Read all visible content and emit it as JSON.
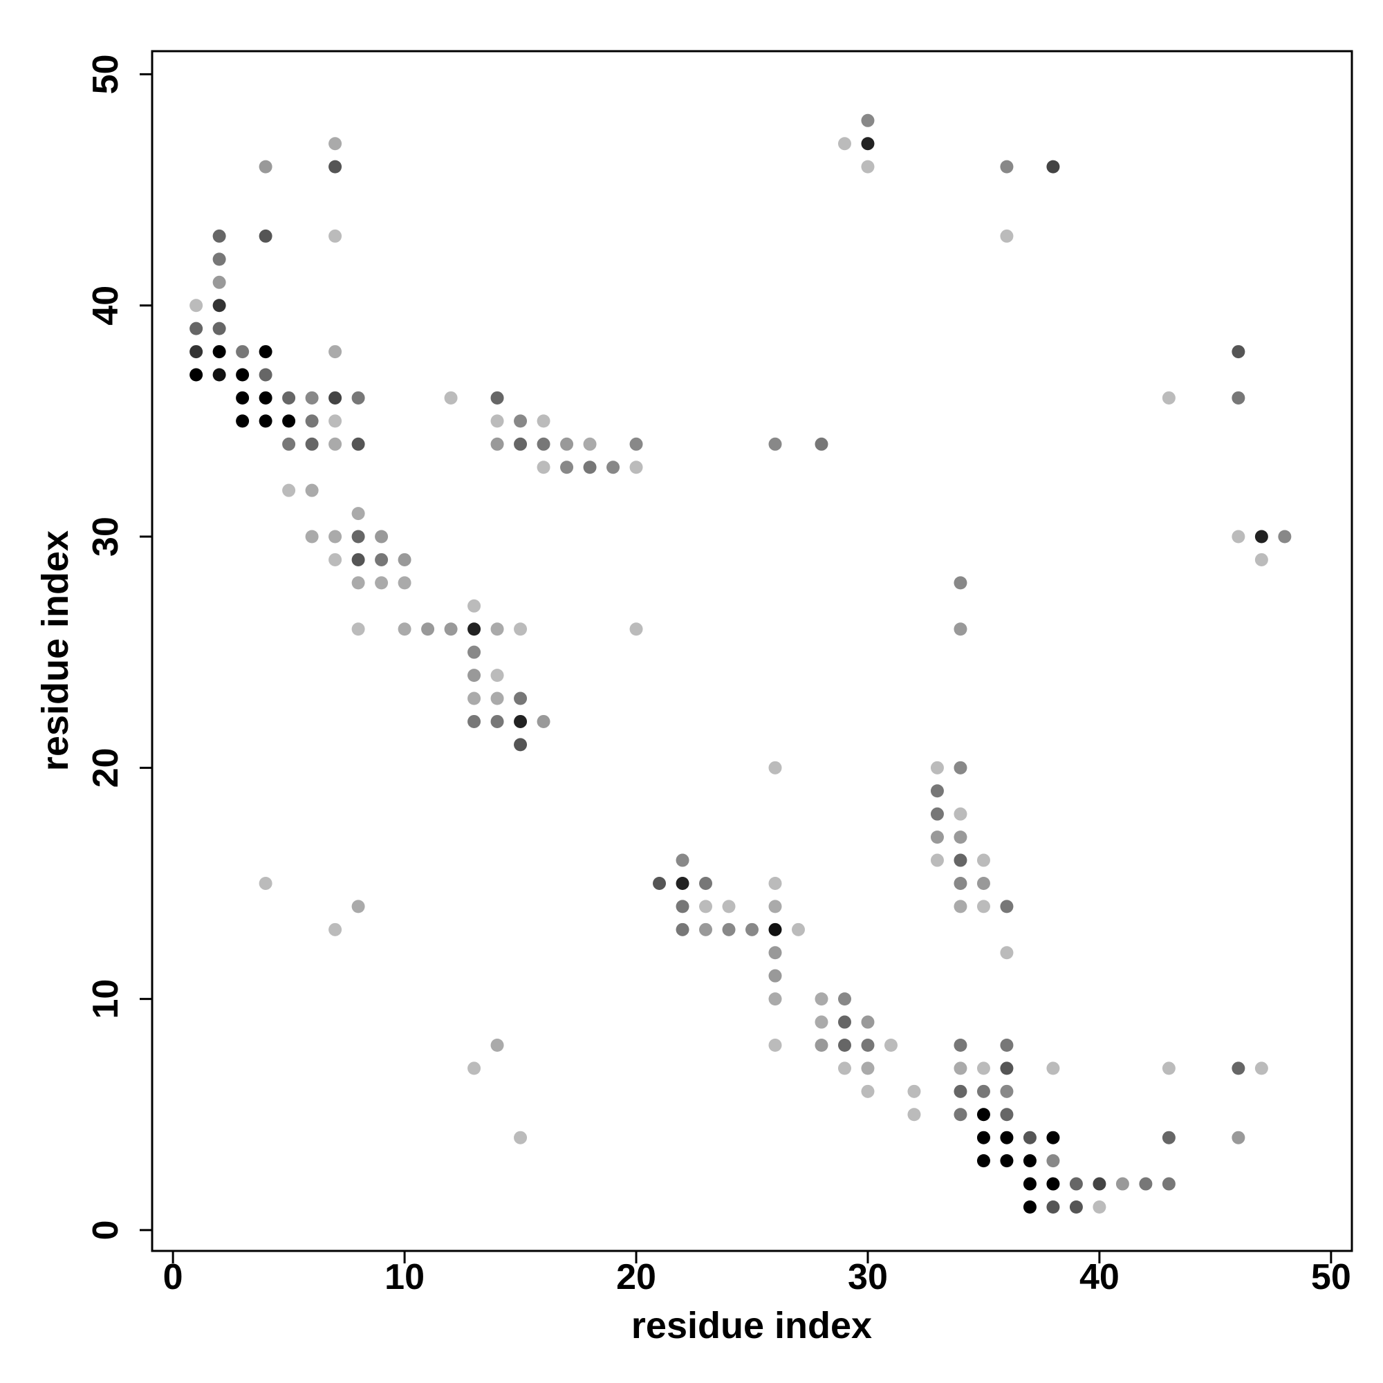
{
  "chart_data": {
    "type": "scatter",
    "xlabel": "residue index",
    "ylabel": "residue index",
    "xlim": [
      -0.9,
      50.9
    ],
    "ylim": [
      -0.9,
      51
    ],
    "xticks": [
      0,
      10,
      20,
      30,
      40,
      50
    ],
    "yticks": [
      0,
      10,
      20,
      30,
      40,
      50
    ],
    "x": [
      1,
      1,
      1,
      1,
      2,
      2,
      2,
      2,
      2,
      2,
      2,
      3,
      3,
      3,
      3,
      4,
      4,
      4,
      4,
      4,
      4,
      4,
      5,
      5,
      5,
      5,
      6,
      6,
      6,
      6,
      6,
      7,
      7,
      7,
      7,
      7,
      7,
      7,
      7,
      7,
      7,
      8,
      8,
      8,
      8,
      8,
      8,
      8,
      8,
      9,
      9,
      9,
      10,
      10,
      10,
      11,
      12,
      12,
      13,
      13,
      13,
      13,
      13,
      13,
      13,
      14,
      14,
      14,
      14,
      14,
      14,
      14,
      14,
      15,
      15,
      15,
      15,
      15,
      15,
      15,
      16,
      16,
      16,
      16,
      17,
      17,
      18,
      18,
      19,
      20,
      20,
      20,
      21,
      22,
      22,
      22,
      22,
      23,
      23,
      23,
      24,
      24,
      25,
      26,
      26,
      26,
      26,
      26,
      26,
      26,
      26,
      26,
      27,
      28,
      28,
      28,
      28,
      29,
      29,
      29,
      29,
      29,
      30,
      30,
      30,
      30,
      30,
      30,
      30,
      31,
      32,
      32,
      33,
      33,
      33,
      33,
      33,
      34,
      34,
      34,
      34,
      34,
      34,
      34,
      34,
      34,
      34,
      34,
      34,
      35,
      35,
      35,
      35,
      35,
      35,
      35,
      35,
      36,
      36,
      36,
      36,
      36,
      36,
      36,
      36,
      36,
      36,
      37,
      37,
      37,
      37,
      38,
      38,
      38,
      38,
      38,
      38,
      39,
      39,
      40,
      40,
      41,
      42,
      43,
      43,
      43,
      43,
      46,
      46,
      46,
      46,
      46,
      47,
      47,
      47,
      48
    ],
    "y": [
      40,
      39,
      38,
      37,
      43,
      42,
      41,
      40,
      39,
      38,
      37,
      38,
      37,
      36,
      35,
      46,
      43,
      38,
      37,
      36,
      35,
      15,
      36,
      35,
      34,
      32,
      36,
      35,
      34,
      32,
      30,
      47,
      46,
      43,
      38,
      36,
      35,
      34,
      30,
      29,
      13,
      36,
      34,
      31,
      30,
      29,
      28,
      26,
      14,
      30,
      29,
      28,
      29,
      28,
      26,
      26,
      36,
      26,
      27,
      26,
      25,
      24,
      23,
      22,
      7,
      36,
      35,
      34,
      26,
      24,
      23,
      22,
      8,
      35,
      34,
      26,
      23,
      22,
      21,
      4,
      35,
      34,
      33,
      22,
      34,
      33,
      34,
      33,
      33,
      34,
      33,
      26,
      15,
      16,
      15,
      14,
      13,
      15,
      14,
      13,
      14,
      13,
      13,
      34,
      20,
      15,
      14,
      13,
      12,
      11,
      10,
      8,
      13,
      34,
      10,
      9,
      8,
      47,
      10,
      9,
      8,
      7,
      48,
      47,
      46,
      9,
      8,
      7,
      6,
      8,
      6,
      5,
      20,
      19,
      18,
      17,
      16,
      28,
      26,
      20,
      18,
      17,
      16,
      15,
      14,
      8,
      7,
      6,
      5,
      16,
      15,
      14,
      7,
      6,
      5,
      4,
      3,
      46,
      43,
      14,
      12,
      8,
      7,
      6,
      5,
      4,
      3,
      4,
      3,
      2,
      1,
      46,
      7,
      4,
      3,
      2,
      1,
      2,
      1,
      2,
      1,
      2,
      2,
      36,
      7,
      4,
      2,
      38,
      36,
      30,
      7,
      4,
      30,
      29,
      7,
      30
    ],
    "colors": [
      "#bbb",
      "#666",
      "#333",
      "#000",
      "#666",
      "#777",
      "#999",
      "#333",
      "#666",
      "#000",
      "#111",
      "#777",
      "#000",
      "#000",
      "#000",
      "#999",
      "#555",
      "#000",
      "#666",
      "#000",
      "#000",
      "#bbb",
      "#666",
      "#000",
      "#777",
      "#bbb",
      "#888",
      "#777",
      "#666",
      "#aaa",
      "#aaa",
      "#aaa",
      "#555",
      "#bbb",
      "#aaa",
      "#444",
      "#bbb",
      "#aaa",
      "#aaa",
      "#bbb",
      "#bbb",
      "#777",
      "#555",
      "#aaa",
      "#666",
      "#555",
      "#aaa",
      "#bbb",
      "#aaa",
      "#999",
      "#777",
      "#aaa",
      "#999",
      "#aaa",
      "#aaa",
      "#999",
      "#bbb",
      "#999",
      "#bbb",
      "#222",
      "#888",
      "#999",
      "#aaa",
      "#777",
      "#bbb",
      "#666",
      "#bbb",
      "#999",
      "#aaa",
      "#bbb",
      "#aaa",
      "#777",
      "#aaa",
      "#888",
      "#666",
      "#bbb",
      "#777",
      "#222",
      "#555",
      "#bbb",
      "#bbb",
      "#777",
      "#bbb",
      "#999",
      "#999",
      "#888",
      "#aaa",
      "#777",
      "#888",
      "#888",
      "#bbb",
      "#bbb",
      "#555",
      "#888",
      "#222",
      "#777",
      "#777",
      "#777",
      "#bbb",
      "#999",
      "#bbb",
      "#888",
      "#888",
      "#888",
      "#bbb",
      "#bbb",
      "#aaa",
      "#111",
      "#999",
      "#999",
      "#aaa",
      "#bbb",
      "#bbb",
      "#777",
      "#aaa",
      "#aaa",
      "#999",
      "#bbb",
      "#888",
      "#666",
      "#666",
      "#bbb",
      "#888",
      "#222",
      "#bbb",
      "#999",
      "#777",
      "#aaa",
      "#bbb",
      "#bbb",
      "#bbb",
      "#bbb",
      "#bbb",
      "#777",
      "#777",
      "#999",
      "#bbb",
      "#888",
      "#999",
      "#888",
      "#bbb",
      "#999",
      "#666",
      "#888",
      "#aaa",
      "#777",
      "#aaa",
      "#666",
      "#777",
      "#bbb",
      "#999",
      "#bbb",
      "#bbb",
      "#777",
      "#000",
      "#000",
      "#000",
      "#888",
      "#bbb",
      "#777",
      "#bbb",
      "#777",
      "#555",
      "#888",
      "#666",
      "#000",
      "#000",
      "#555",
      "#000",
      "#000",
      "#000",
      "#444",
      "#bbb",
      "#000",
      "#888",
      "#000",
      "#555",
      "#666",
      "#555",
      "#444",
      "#bbb",
      "#999",
      "#777",
      "#bbb",
      "#bbb",
      "#666",
      "#777",
      "#555",
      "#777",
      "#bbb",
      "#666",
      "#999",
      "#222",
      "#bbb",
      "#bbb",
      "#888"
    ]
  }
}
